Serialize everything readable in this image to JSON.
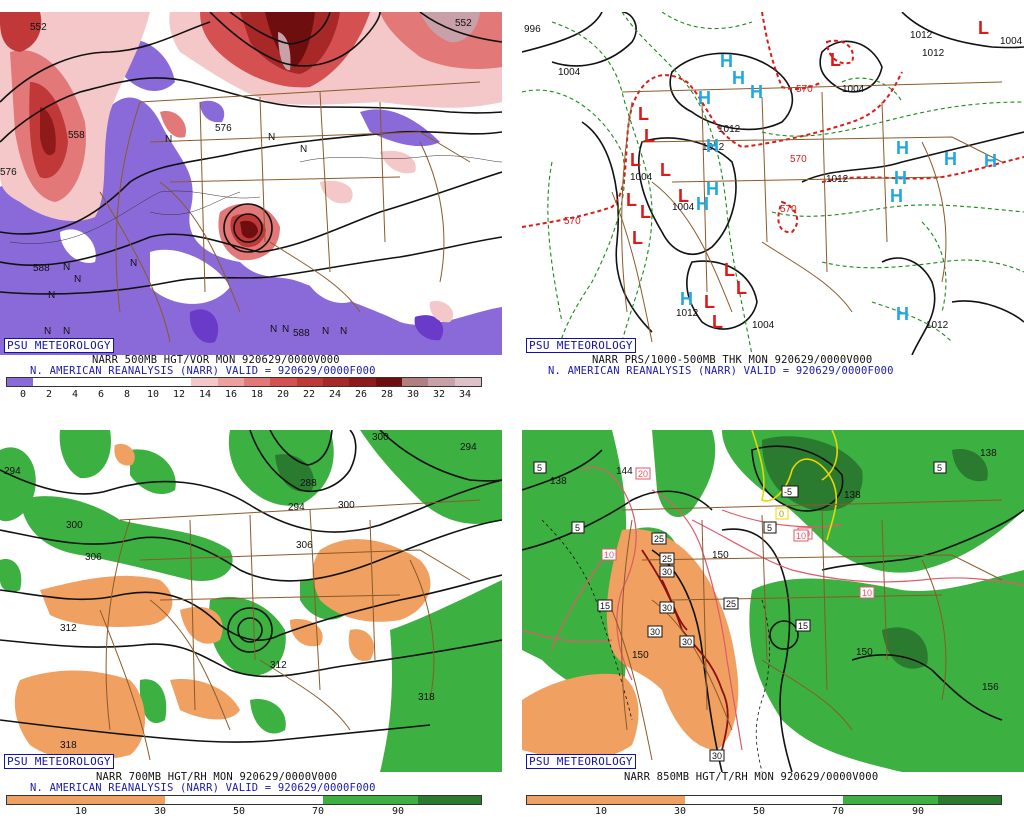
{
  "colors": {
    "vort_red": [
      "#f4c8c8",
      "#eda0a0",
      "#e27878",
      "#d55050",
      "#c03838",
      "#a82828",
      "#8e1a1a",
      "#6e0e0e",
      "#b08080",
      "#c8a0a8",
      "#e0c0c8"
    ],
    "vort_neg": "#8a6ad8",
    "rh_dry": "#f0a060",
    "rh_moist": "#3cb040",
    "rh_moist_dark": "#2a7a30",
    "state_lines": "#8b5a2b",
    "h_blue": "#22a8e0",
    "l_red": "#dd1a1a"
  },
  "panels": [
    {
      "badge": "PSU METEOROLOGY",
      "caption1": "NARR 500MB HGT/VOR MON 920629/0000V000",
      "caption2": "N. AMERICAN REANALYSIS (NARR) VALID = 920629/0000F000",
      "contour_labels": [
        "552",
        "576",
        "558",
        "576",
        "588",
        "588",
        "552"
      ],
      "marks_N": [
        "N",
        "N",
        "N",
        "N",
        "N",
        "N",
        "N",
        "N",
        "N",
        "N",
        "N",
        "N",
        "N"
      ],
      "colorbar_ticks": [
        "0",
        "2",
        "4",
        "6",
        "8",
        "10",
        "12",
        "14",
        "16",
        "18",
        "20",
        "22",
        "24",
        "26",
        "28",
        "30",
        "32",
        "34"
      ]
    },
    {
      "badge": "PSU METEOROLOGY",
      "caption1": "NARR PRS/1000-500MB THK MON 920629/0000V000",
      "caption2": "N. AMERICAN REANALYSIS (NARR) VALID = 920629/0000F000",
      "contour_labels": [
        "996",
        "1004",
        "1012",
        "1004",
        "1012",
        "1004",
        "1012",
        "1004",
        "1012",
        "1012",
        "1004",
        "1012",
        "1012",
        "1004"
      ],
      "thickness_labels": [
        "570",
        "570",
        "570",
        "570"
      ],
      "highs": [
        "H",
        "H",
        "H",
        "H",
        "H",
        "H",
        "H",
        "H",
        "H",
        "H",
        "H",
        "H",
        "H",
        "H"
      ],
      "lows": [
        "L",
        "L",
        "L",
        "L",
        "L",
        "L",
        "L",
        "L",
        "L",
        "L",
        "L",
        "L",
        "L",
        "L"
      ]
    },
    {
      "badge": "PSU METEOROLOGY",
      "caption1": "NARR 700MB HGT/RH MON 920629/0000V000",
      "caption2": "N. AMERICAN REANALYSIS (NARR) VALID = 920629/0000F000",
      "contour_labels": [
        "294",
        "300",
        "306",
        "312",
        "318",
        "300",
        "288",
        "294",
        "300",
        "306",
        "312",
        "318",
        "294"
      ],
      "colorbar_ticks": [
        "10",
        "30",
        "50",
        "70",
        "90"
      ]
    },
    {
      "badge": "PSU METEOROLOGY",
      "caption1": "NARR 850MB HGT/T/RH MON 920629/0000V000",
      "contour_labels": [
        "138",
        "144",
        "150",
        "150",
        "138",
        "150",
        "156",
        "138"
      ],
      "temp_labels": [
        "20",
        "25",
        "25",
        "10",
        "15",
        "30",
        "30",
        "30",
        "30",
        "25",
        "15",
        "10",
        "10",
        "5",
        "5",
        "-5",
        "0",
        "5",
        "5",
        "10",
        "30"
      ],
      "colorbar_ticks": [
        "10",
        "30",
        "50",
        "70",
        "90"
      ]
    }
  ]
}
